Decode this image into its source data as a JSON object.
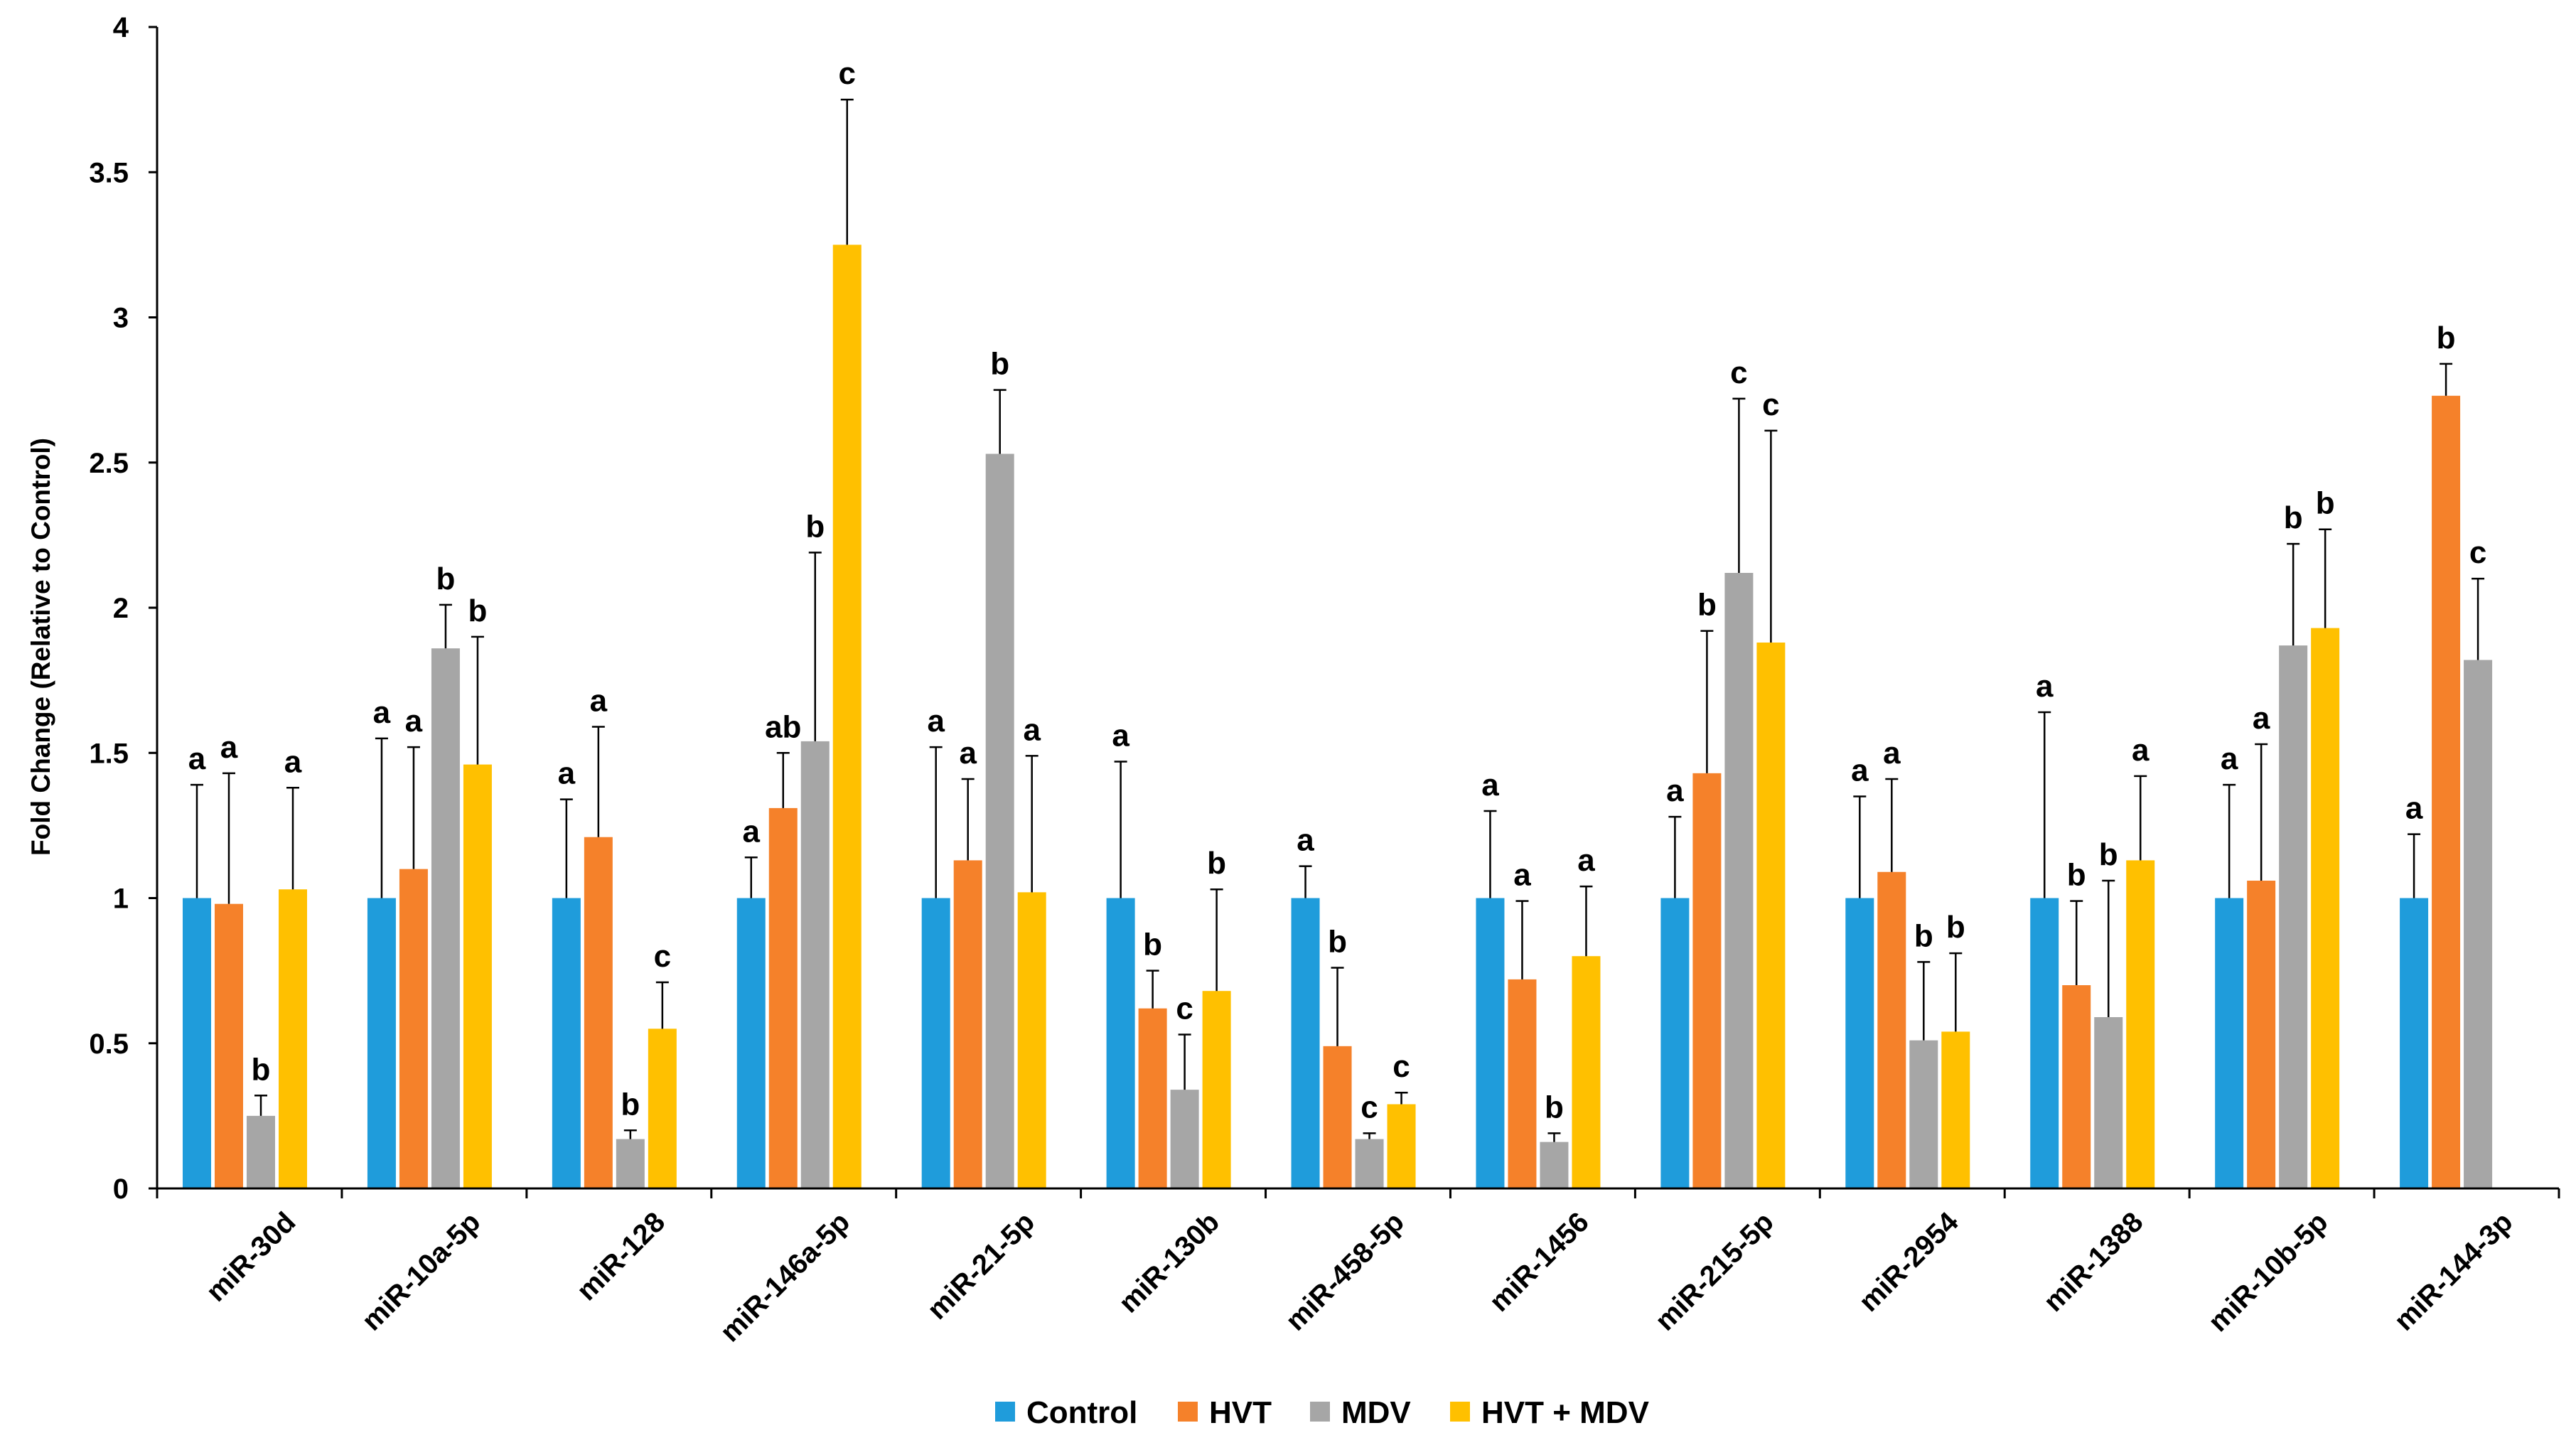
{
  "chart_data": {
    "type": "bar",
    "title": "",
    "xlabel": "",
    "ylabel": "Fold Change (Relative to Control)",
    "ylim": [
      0,
      4
    ],
    "yticks": [
      "0",
      "0.5",
      "1",
      "1.5",
      "2",
      "2.5",
      "3",
      "3.5",
      "4"
    ],
    "grid": false,
    "legend_position": "bottom",
    "categories": [
      "miR-30d",
      "miR-10a-5p",
      "miR-128",
      "miR-146a-5p",
      "miR-21-5p",
      "miR-130b",
      "miR-458-5p",
      "miR-1456",
      "miR-215-5p",
      "miR-2954",
      "miR-1388",
      "miR-10b-5p",
      "miR-144-3p"
    ],
    "series": [
      {
        "name": "Control",
        "color": "#1F9CDB",
        "values": [
          1,
          1,
          1,
          1,
          1,
          1,
          1,
          1,
          1,
          1,
          1,
          1,
          1
        ],
        "errors": [
          0.39,
          0.55,
          0.34,
          0.14,
          0.52,
          0.47,
          0.11,
          0.3,
          0.28,
          0.35,
          0.64,
          0.39,
          0.22
        ],
        "labels": [
          "a",
          "a",
          "a",
          "a",
          "a",
          "a",
          "a",
          "a",
          "a",
          "a",
          "a",
          "a",
          "a"
        ]
      },
      {
        "name": "HVT",
        "color": "#F5812A",
        "values": [
          0.98,
          1.1,
          1.21,
          1.31,
          1.13,
          0.62,
          0.49,
          0.72,
          1.43,
          1.09,
          0.7,
          1.06,
          2.73
        ],
        "errors": [
          0.45,
          0.42,
          0.38,
          0.19,
          0.28,
          0.13,
          0.27,
          0.27,
          0.49,
          0.32,
          0.29,
          0.47,
          0.11
        ],
        "labels": [
          "a",
          "a",
          "a",
          "ab",
          "a",
          "b",
          "b",
          "a",
          "b",
          "a",
          "b",
          "a",
          "b"
        ]
      },
      {
        "name": "MDV",
        "color": "#A6A6A6",
        "values": [
          0.25,
          1.86,
          0.17,
          1.54,
          2.53,
          0.34,
          0.17,
          0.16,
          2.12,
          0.51,
          0.59,
          1.87,
          1.82
        ],
        "errors": [
          0.07,
          0.15,
          0.03,
          0.65,
          0.22,
          0.19,
          0.02,
          0.03,
          0.6,
          0.27,
          0.47,
          0.35,
          0.28
        ],
        "labels": [
          "b",
          "b",
          "b",
          "b",
          "b",
          "c",
          "c",
          "b",
          "c",
          "b",
          "b",
          "b",
          "c"
        ]
      },
      {
        "name": "HVT + MDV",
        "color": "#FFC000",
        "values": [
          1.03,
          1.46,
          0.55,
          3.25,
          1.02,
          0.68,
          0.29,
          0.8,
          1.88,
          0.54,
          1.13,
          1.93,
          null
        ],
        "errors": [
          0.35,
          0.44,
          0.16,
          0.5,
          0.47,
          0.35,
          0.04,
          0.24,
          0.73,
          0.27,
          0.29,
          0.34,
          null
        ],
        "labels": [
          "a",
          "b",
          "c",
          "c",
          "a",
          "b",
          "c",
          "a",
          "c",
          "b",
          "a",
          "b",
          null
        ]
      }
    ]
  }
}
